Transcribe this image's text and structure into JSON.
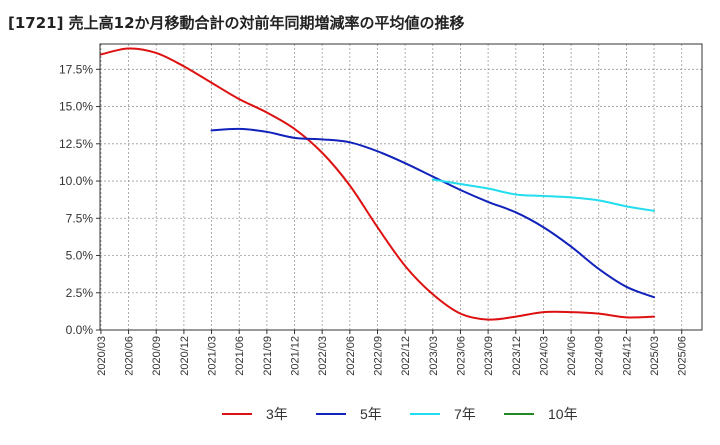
{
  "chart_data": {
    "type": "line",
    "title": "[1721]  売上高12か月移動合計の対前年同期増減率の平均値の推移",
    "xlabel": "",
    "ylabel": "",
    "x_ticks": [
      "2020/03",
      "2020/06",
      "2020/09",
      "2020/12",
      "2021/03",
      "2021/06",
      "2021/09",
      "2021/12",
      "2022/03",
      "2022/06",
      "2022/09",
      "2022/12",
      "2023/03",
      "2023/06",
      "2023/09",
      "2023/12",
      "2024/03",
      "2024/06",
      "2024/09",
      "2024/12",
      "2025/03",
      "2025/06"
    ],
    "y_ticks": [
      "0.0%",
      "2.5%",
      "5.0%",
      "7.5%",
      "10.0%",
      "12.5%",
      "15.0%",
      "17.5%"
    ],
    "ylim": [
      0,
      19.2
    ],
    "y_unit": "%",
    "grid": true,
    "legend_position": "bottom",
    "series": [
      {
        "name": "3年",
        "color": "#dd1111",
        "points": [
          [
            "2020/03",
            18.5
          ],
          [
            "2020/06",
            18.9
          ],
          [
            "2020/09",
            18.6
          ],
          [
            "2020/12",
            17.7
          ],
          [
            "2021/03",
            16.6
          ],
          [
            "2021/06",
            15.5
          ],
          [
            "2021/09",
            14.6
          ],
          [
            "2021/12",
            13.5
          ],
          [
            "2022/03",
            11.9
          ],
          [
            "2022/06",
            9.7
          ],
          [
            "2022/09",
            6.9
          ],
          [
            "2022/12",
            4.3
          ],
          [
            "2023/03",
            2.4
          ],
          [
            "2023/06",
            1.1
          ],
          [
            "2023/09",
            0.7
          ],
          [
            "2023/12",
            0.9
          ],
          [
            "2024/03",
            1.2
          ],
          [
            "2024/06",
            1.2
          ],
          [
            "2024/09",
            1.1
          ],
          [
            "2024/12",
            0.85
          ],
          [
            "2025/03",
            0.9
          ]
        ]
      },
      {
        "name": "5年",
        "color": "#1122bb",
        "points": [
          [
            "2021/03",
            13.4
          ],
          [
            "2021/06",
            13.5
          ],
          [
            "2021/09",
            13.3
          ],
          [
            "2021/12",
            12.9
          ],
          [
            "2022/03",
            12.8
          ],
          [
            "2022/06",
            12.6
          ],
          [
            "2022/09",
            12.0
          ],
          [
            "2022/12",
            11.2
          ],
          [
            "2023/03",
            10.3
          ],
          [
            "2023/06",
            9.4
          ],
          [
            "2023/09",
            8.6
          ],
          [
            "2023/12",
            7.9
          ],
          [
            "2024/03",
            6.9
          ],
          [
            "2024/06",
            5.6
          ],
          [
            "2024/09",
            4.1
          ],
          [
            "2024/12",
            2.9
          ],
          [
            "2025/03",
            2.2
          ]
        ]
      },
      {
        "name": "7年",
        "color": "#22ddee",
        "points": [
          [
            "2023/03",
            10.1
          ],
          [
            "2023/06",
            9.8
          ],
          [
            "2023/09",
            9.5
          ],
          [
            "2023/12",
            9.1
          ],
          [
            "2024/03",
            9.0
          ],
          [
            "2024/06",
            8.9
          ],
          [
            "2024/09",
            8.7
          ],
          [
            "2024/12",
            8.3
          ],
          [
            "2025/03",
            8.0
          ]
        ]
      },
      {
        "name": "10年",
        "color": "#228822",
        "points": []
      }
    ]
  }
}
